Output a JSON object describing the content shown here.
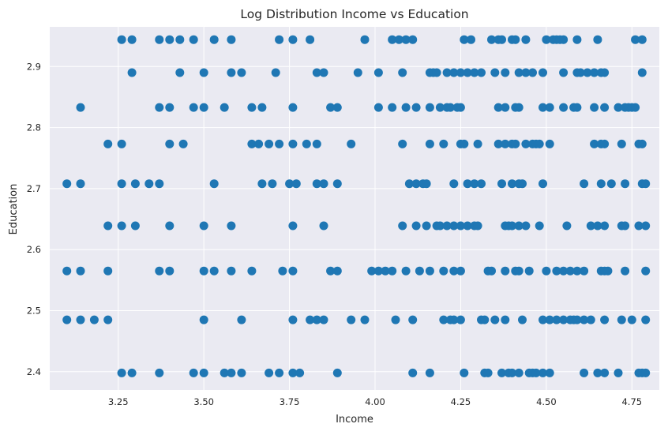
{
  "chart_data": {
    "type": "scatter",
    "title": "Log Distribution Income vs Education",
    "xlabel": "Income",
    "ylabel": "Education",
    "xlim": [
      3.05,
      4.83
    ],
    "ylim": [
      2.37,
      2.965
    ],
    "xticks": [
      3.25,
      3.5,
      3.75,
      4.0,
      4.25,
      4.5,
      4.75
    ],
    "xtick_labels": [
      "3.25",
      "3.50",
      "3.75",
      "4.00",
      "4.25",
      "4.50",
      "4.75"
    ],
    "yticks": [
      2.4,
      2.5,
      2.6,
      2.7,
      2.8,
      2.9
    ],
    "ytick_labels": [
      "2.4",
      "2.5",
      "2.6",
      "2.7",
      "2.8",
      "2.9"
    ],
    "grid": true,
    "background_color": "#EAEAF2",
    "point_color": "#1F77B4",
    "series": [
      {
        "rows": [
          {
            "y": 2.944,
            "x": [
              3.26,
              3.29,
              3.37,
              3.4,
              3.43,
              3.47,
              3.53,
              3.58,
              3.72,
              3.76,
              3.81,
              3.97,
              4.05,
              4.07,
              4.09,
              4.11,
              4.26,
              4.28,
              4.34,
              4.36,
              4.37,
              4.4,
              4.41,
              4.44,
              4.5,
              4.52,
              4.53,
              4.54,
              4.55,
              4.59,
              4.65,
              4.76,
              4.78
            ]
          },
          {
            "y": 2.89,
            "x": [
              3.29,
              3.43,
              3.5,
              3.58,
              3.61,
              3.71,
              3.83,
              3.85,
              3.95,
              4.01,
              4.08,
              4.16,
              4.17,
              4.18,
              4.21,
              4.23,
              4.25,
              4.27,
              4.29,
              4.31,
              4.35,
              4.38,
              4.42,
              4.44,
              4.46,
              4.49,
              4.55,
              4.59,
              4.6,
              4.62,
              4.64,
              4.66,
              4.67,
              4.78
            ]
          },
          {
            "y": 2.833,
            "x": [
              3.14,
              3.37,
              3.4,
              3.47,
              3.5,
              3.56,
              3.64,
              3.67,
              3.76,
              3.87,
              3.89,
              4.01,
              4.05,
              4.09,
              4.12,
              4.16,
              4.19,
              4.21,
              4.22,
              4.24,
              4.25,
              4.36,
              4.38,
              4.41,
              4.42,
              4.49,
              4.51,
              4.55,
              4.58,
              4.59,
              4.64,
              4.67,
              4.71,
              4.73,
              4.74,
              4.75,
              4.76
            ]
          },
          {
            "y": 2.773,
            "x": [
              3.22,
              3.26,
              3.4,
              3.44,
              3.64,
              3.66,
              3.69,
              3.72,
              3.76,
              3.8,
              3.83,
              3.93,
              4.08,
              4.16,
              4.2,
              4.25,
              4.26,
              4.3,
              4.36,
              4.38,
              4.4,
              4.41,
              4.44,
              4.46,
              4.47,
              4.48,
              4.51,
              4.64,
              4.66,
              4.67,
              4.72,
              4.77,
              4.78
            ]
          },
          {
            "y": 2.708,
            "x": [
              3.1,
              3.14,
              3.26,
              3.3,
              3.34,
              3.37,
              3.53,
              3.67,
              3.7,
              3.75,
              3.77,
              3.83,
              3.85,
              3.89,
              4.1,
              4.12,
              4.14,
              4.15,
              4.23,
              4.27,
              4.29,
              4.31,
              4.37,
              4.4,
              4.42,
              4.43,
              4.49,
              4.61,
              4.66,
              4.69,
              4.73,
              4.78,
              4.79
            ]
          },
          {
            "y": 2.639,
            "x": [
              3.22,
              3.26,
              3.3,
              3.4,
              3.5,
              3.58,
              3.76,
              3.85,
              4.08,
              4.12,
              4.15,
              4.18,
              4.19,
              4.21,
              4.23,
              4.25,
              4.27,
              4.29,
              4.3,
              4.38,
              4.39,
              4.4,
              4.42,
              4.44,
              4.48,
              4.56,
              4.63,
              4.65,
              4.67,
              4.72,
              4.73,
              4.77,
              4.79
            ]
          },
          {
            "y": 2.565,
            "x": [
              3.1,
              3.14,
              3.22,
              3.37,
              3.4,
              3.5,
              3.53,
              3.58,
              3.64,
              3.73,
              3.76,
              3.87,
              3.89,
              3.99,
              4.01,
              4.03,
              4.05,
              4.09,
              4.13,
              4.16,
              4.2,
              4.23,
              4.25,
              4.33,
              4.34,
              4.38,
              4.41,
              4.42,
              4.45,
              4.5,
              4.53,
              4.55,
              4.57,
              4.59,
              4.61,
              4.66,
              4.67,
              4.68,
              4.73,
              4.79
            ]
          },
          {
            "y": 2.485,
            "x": [
              3.1,
              3.14,
              3.18,
              3.22,
              3.5,
              3.61,
              3.76,
              3.81,
              3.83,
              3.85,
              3.93,
              3.97,
              4.06,
              4.11,
              4.2,
              4.22,
              4.23,
              4.25,
              4.31,
              4.32,
              4.35,
              4.38,
              4.43,
              4.49,
              4.51,
              4.53,
              4.55,
              4.57,
              4.58,
              4.59,
              4.61,
              4.63,
              4.67,
              4.72,
              4.75,
              4.79
            ]
          },
          {
            "y": 2.398,
            "x": [
              3.26,
              3.29,
              3.37,
              3.47,
              3.5,
              3.56,
              3.58,
              3.61,
              3.69,
              3.72,
              3.76,
              3.78,
              3.89,
              4.11,
              4.16,
              4.26,
              4.32,
              4.33,
              4.37,
              4.39,
              4.4,
              4.42,
              4.45,
              4.46,
              4.47,
              4.49,
              4.51,
              4.61,
              4.65,
              4.67,
              4.71,
              4.77,
              4.78,
              4.79
            ]
          }
        ]
      }
    ]
  }
}
